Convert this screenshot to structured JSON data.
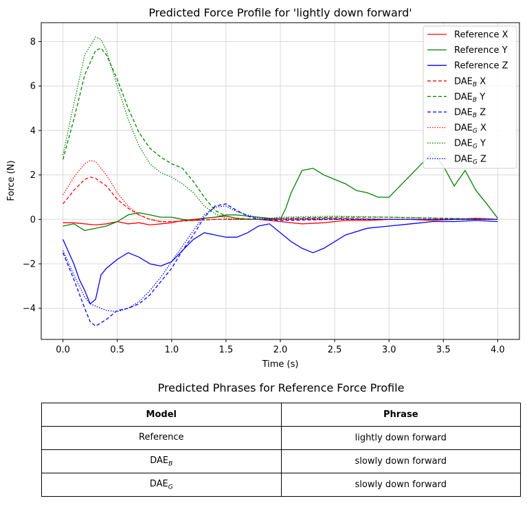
{
  "chart_data": {
    "type": "line",
    "title": "Predicted Force Profile for 'lightly down forward'",
    "xlabel": "Time (s)",
    "ylabel": "Force (N)",
    "xlim": [
      -0.2,
      4.2
    ],
    "ylim": [
      -5.4,
      8.85
    ],
    "xticks": [
      0.0,
      0.5,
      1.0,
      1.5,
      2.0,
      2.5,
      3.0,
      3.5,
      4.0
    ],
    "xtick_labels": [
      "0.0",
      "0.5",
      "1.0",
      "1.5",
      "2.0",
      "2.5",
      "3.0",
      "3.5",
      "4.0"
    ],
    "yticks": [
      -4,
      -2,
      0,
      2,
      4,
      6,
      8
    ],
    "ytick_labels": [
      "−4",
      "−2",
      "0",
      "2",
      "4",
      "6",
      "8"
    ],
    "grid": true,
    "legend_position": "top-right",
    "series": [
      {
        "name": "Reference X",
        "legend_base": "Reference X",
        "legend_sub": "",
        "legend_suffix": "",
        "color": "#ff0000",
        "style": "solid",
        "x": [
          0,
          0.1,
          0.2,
          0.3,
          0.4,
          0.5,
          0.6,
          0.7,
          0.8,
          0.9,
          1.0,
          1.1,
          1.2,
          1.3,
          1.4,
          1.5,
          1.6,
          1.7,
          1.8,
          1.9,
          2.0,
          2.2,
          2.4,
          2.6,
          2.8,
          3.0,
          3.2,
          3.4,
          3.6,
          3.8,
          4.0
        ],
        "y": [
          -0.15,
          -0.15,
          -0.2,
          -0.25,
          -0.2,
          -0.1,
          -0.2,
          -0.15,
          -0.25,
          -0.2,
          -0.15,
          -0.05,
          0,
          0.05,
          0.1,
          0.15,
          0.05,
          0,
          0,
          -0.05,
          -0.1,
          -0.2,
          -0.15,
          -0.05,
          -0.05,
          0,
          0,
          -0.05,
          0,
          0.05,
          0
        ]
      },
      {
        "name": "Reference Y",
        "legend_base": "Reference Y",
        "legend_sub": "",
        "legend_suffix": "",
        "color": "#008000",
        "style": "solid",
        "x": [
          0,
          0.1,
          0.2,
          0.3,
          0.4,
          0.5,
          0.6,
          0.7,
          0.8,
          0.9,
          1.0,
          1.1,
          1.2,
          1.3,
          1.4,
          1.5,
          1.6,
          1.7,
          1.8,
          1.9,
          2.0,
          2.05,
          2.1,
          2.2,
          2.3,
          2.4,
          2.5,
          2.6,
          2.7,
          2.8,
          2.9,
          3.0,
          3.1,
          3.2,
          3.3,
          3.4,
          3.5,
          3.6,
          3.7,
          3.8,
          3.9,
          4.0
        ],
        "y": [
          -0.3,
          -0.2,
          -0.5,
          -0.4,
          -0.3,
          -0.1,
          0.2,
          0.3,
          0.2,
          0.1,
          0.1,
          0,
          -0.05,
          0.05,
          0.1,
          0.2,
          0.2,
          0.15,
          0.1,
          0.05,
          0,
          0.5,
          1.2,
          2.2,
          2.3,
          2.0,
          1.8,
          1.6,
          1.3,
          1.2,
          1.0,
          1.0,
          1.5,
          2.0,
          2.5,
          3.0,
          2.4,
          1.5,
          2.2,
          1.3,
          0.7,
          0.05
        ]
      },
      {
        "name": "Reference Z",
        "legend_base": "Reference Z",
        "legend_sub": "",
        "legend_suffix": "",
        "color": "#0000ff",
        "style": "solid",
        "x": [
          0,
          0.1,
          0.15,
          0.2,
          0.25,
          0.3,
          0.35,
          0.4,
          0.5,
          0.6,
          0.7,
          0.8,
          0.9,
          1.0,
          1.1,
          1.2,
          1.3,
          1.4,
          1.5,
          1.6,
          1.7,
          1.8,
          1.9,
          2.0,
          2.1,
          2.2,
          2.3,
          2.4,
          2.5,
          2.6,
          2.8,
          3.0,
          3.2,
          3.4,
          3.6,
          3.8,
          4.0
        ],
        "y": [
          -0.9,
          -2.0,
          -2.7,
          -3.2,
          -3.8,
          -3.6,
          -2.5,
          -2.2,
          -1.8,
          -1.5,
          -1.7,
          -2.0,
          -2.1,
          -1.9,
          -1.4,
          -0.9,
          -0.6,
          -0.7,
          -0.8,
          -0.8,
          -0.6,
          -0.3,
          -0.2,
          -0.6,
          -1.0,
          -1.3,
          -1.5,
          -1.3,
          -1.0,
          -0.7,
          -0.4,
          -0.3,
          -0.2,
          -0.1,
          -0.1,
          -0.05,
          -0.1
        ]
      },
      {
        "name": "DAE_B X",
        "legend_base": "DAE",
        "legend_sub": "B",
        "legend_suffix": " X",
        "color": "#ff0000",
        "style": "dashed",
        "x": [
          0,
          0.1,
          0.2,
          0.25,
          0.3,
          0.4,
          0.5,
          0.6,
          0.7,
          0.8,
          0.9,
          1.0,
          1.2,
          1.4,
          1.6,
          1.8,
          2.0,
          2.5,
          3.0,
          3.5,
          4.0
        ],
        "y": [
          0.7,
          1.3,
          1.8,
          1.9,
          1.85,
          1.5,
          0.9,
          0.5,
          0.2,
          0,
          -0.1,
          -0.1,
          -0.05,
          0,
          0,
          0,
          0,
          0.05,
          0,
          0,
          0
        ]
      },
      {
        "name": "DAE_B Y",
        "legend_base": "DAE",
        "legend_sub": "B",
        "legend_suffix": " Y",
        "color": "#008000",
        "style": "dashed",
        "x": [
          0,
          0.1,
          0.2,
          0.3,
          0.35,
          0.4,
          0.5,
          0.6,
          0.7,
          0.8,
          0.9,
          1.0,
          1.1,
          1.2,
          1.3,
          1.4,
          1.5,
          1.6,
          1.8,
          2.0,
          2.5,
          3.0,
          3.5,
          4.0
        ],
        "y": [
          2.7,
          4.5,
          6.5,
          7.6,
          7.7,
          7.4,
          6.3,
          5.0,
          3.9,
          3.2,
          2.8,
          2.5,
          2.3,
          1.7,
          1.0,
          0.4,
          0.15,
          0.05,
          0,
          0.05,
          0.1,
          0.1,
          0.05,
          0
        ]
      },
      {
        "name": "DAE_B Z",
        "legend_base": "DAE",
        "legend_sub": "B",
        "legend_suffix": " Z",
        "color": "#0000ff",
        "style": "dashed",
        "x": [
          0,
          0.1,
          0.2,
          0.25,
          0.3,
          0.4,
          0.5,
          0.6,
          0.7,
          0.8,
          0.9,
          1.0,
          1.1,
          1.2,
          1.3,
          1.4,
          1.5,
          1.6,
          1.7,
          1.8,
          2.0,
          2.5,
          3.0,
          3.5,
          4.0
        ],
        "y": [
          -1.5,
          -2.7,
          -4.0,
          -4.6,
          -4.8,
          -4.5,
          -4.1,
          -4.0,
          -3.8,
          -3.4,
          -2.8,
          -2.2,
          -1.4,
          -0.7,
          0.1,
          0.6,
          0.7,
          0.4,
          0.15,
          0,
          -0.05,
          0,
          0,
          0,
          0
        ]
      },
      {
        "name": "DAE_G X",
        "legend_base": "DAE",
        "legend_sub": "G",
        "legend_suffix": " X",
        "color": "#ff0000",
        "style": "dotted",
        "x": [
          0,
          0.1,
          0.2,
          0.25,
          0.3,
          0.4,
          0.5,
          0.6,
          0.7,
          0.8,
          0.9,
          1.0,
          1.2,
          1.4,
          1.6,
          1.8,
          2.0,
          2.5,
          3.0,
          3.5,
          4.0
        ],
        "y": [
          1.1,
          1.9,
          2.5,
          2.65,
          2.6,
          2.0,
          1.2,
          0.6,
          0.2,
          0,
          -0.1,
          -0.1,
          -0.05,
          0,
          0,
          0,
          0.05,
          0.05,
          0,
          0,
          0
        ]
      },
      {
        "name": "DAE_G Y",
        "legend_base": "DAE",
        "legend_sub": "G",
        "legend_suffix": " Y",
        "color": "#008000",
        "style": "dotted",
        "x": [
          0,
          0.1,
          0.2,
          0.3,
          0.35,
          0.4,
          0.5,
          0.6,
          0.7,
          0.8,
          0.9,
          1.0,
          1.1,
          1.2,
          1.3,
          1.4,
          1.5,
          1.6,
          1.8,
          2.0,
          2.5,
          3.0,
          3.5,
          4.0
        ],
        "y": [
          2.9,
          5.2,
          7.4,
          8.2,
          8.1,
          7.6,
          6.0,
          4.5,
          3.3,
          2.5,
          2.1,
          1.9,
          1.6,
          1.2,
          0.6,
          0.25,
          0.05,
          0,
          0,
          0.1,
          0.15,
          0.1,
          0.05,
          0
        ]
      },
      {
        "name": "DAE_G Z",
        "legend_base": "DAE",
        "legend_sub": "G",
        "legend_suffix": " Z",
        "color": "#0000ff",
        "style": "dotted",
        "x": [
          0,
          0.1,
          0.2,
          0.25,
          0.3,
          0.4,
          0.5,
          0.6,
          0.7,
          0.8,
          0.9,
          1.0,
          1.1,
          1.2,
          1.3,
          1.4,
          1.5,
          1.6,
          1.8,
          2.0,
          2.5,
          3.0,
          3.5,
          4.0
        ],
        "y": [
          -1.4,
          -2.5,
          -3.5,
          -3.8,
          -3.9,
          -4.1,
          -4.15,
          -4.0,
          -3.7,
          -3.2,
          -2.6,
          -1.9,
          -1.2,
          -0.5,
          0.2,
          0.55,
          0.6,
          0.35,
          0.05,
          0,
          0,
          0,
          0,
          0
        ]
      }
    ]
  },
  "table": {
    "title": "Predicted Phrases for Reference Force Profile",
    "header": {
      "model": "Model",
      "phrase": "Phrase"
    },
    "rows": [
      {
        "model": "Reference",
        "model_sub": "",
        "phrase": "lightly down forward"
      },
      {
        "model": "DAE",
        "model_sub": "B",
        "phrase": "slowly down forward"
      },
      {
        "model": "DAE",
        "model_sub": "G",
        "phrase": "slowly down forward"
      }
    ]
  }
}
